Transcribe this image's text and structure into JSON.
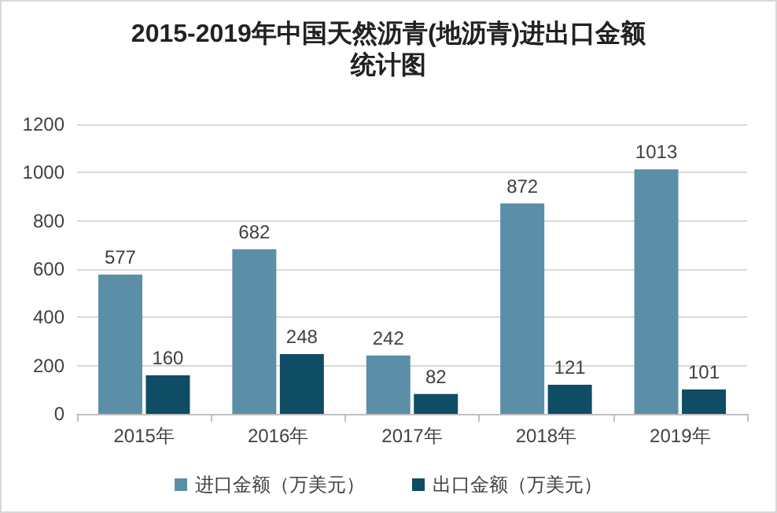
{
  "chart_data": {
    "type": "bar",
    "title": "2015-2019年中国天然沥青(地沥青)进出口金额统计图",
    "categories": [
      "2015年",
      "2016年",
      "2017年",
      "2018年",
      "2019年"
    ],
    "series": [
      {
        "name": "进口金额（万美元）",
        "color": "#5b8fa8",
        "values": [
          577,
          682,
          242,
          872,
          1013
        ]
      },
      {
        "name": "出口金额（万美元）",
        "color": "#0e4d64",
        "values": [
          160,
          248,
          82,
          121,
          101
        ]
      }
    ],
    "ylim": [
      0,
      1200
    ],
    "yticks": [
      0,
      200,
      400,
      600,
      800,
      1000,
      1200
    ],
    "grid": "y",
    "legend": "bottom",
    "data_labels": true
  }
}
